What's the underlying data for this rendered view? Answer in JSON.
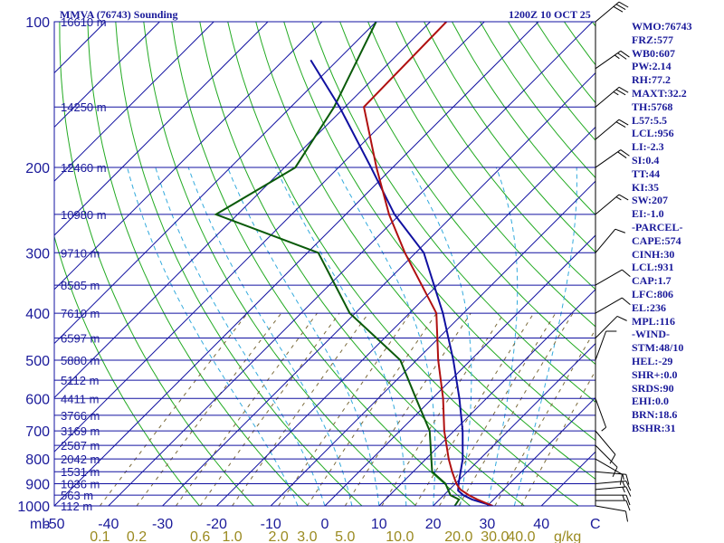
{
  "header": {
    "title_left": "MMVA (76743) Sounding",
    "title_right": "1200Z 10 OCT 25"
  },
  "colors": {
    "frame": "#1010a0",
    "isotherm": "#1010a0",
    "dry_adiabat": "#22aa22",
    "moist_adiabat": "#33aadd",
    "mixing_ratio": "#7a6a3a",
    "temperature": "#b01010",
    "dewpoint": "#0a5a0a",
    "parcel": "#1010a0",
    "wind": "#000000",
    "label": "#1a1a9a",
    "mixing_label": "#9a8a20"
  },
  "chart_data": {
    "type": "skew-t",
    "pressure_levels": [
      100,
      200,
      300,
      400,
      500,
      600,
      700,
      800,
      900,
      1000
    ],
    "pressure_labels": [
      "100",
      "200",
      "300",
      "400",
      "500",
      "600",
      "700",
      "800",
      "900",
      "1000"
    ],
    "height_labels": [
      {
        "p": 100,
        "text": "16610 m"
      },
      {
        "p": 150,
        "text": "14250 m"
      },
      {
        "p": 200,
        "text": "12460 m"
      },
      {
        "p": 250,
        "text": "10980 m"
      },
      {
        "p": 300,
        "text": "9710 m"
      },
      {
        "p": 350,
        "text": "8585 m"
      },
      {
        "p": 400,
        "text": "7610 m"
      },
      {
        "p": 450,
        "text": "6597 m"
      },
      {
        "p": 500,
        "text": "5880 m"
      },
      {
        "p": 550,
        "text": "5112 m"
      },
      {
        "p": 600,
        "text": "4411 m"
      },
      {
        "p": 650,
        "text": "3766 m"
      },
      {
        "p": 700,
        "text": "3169 m"
      },
      {
        "p": 750,
        "text": "2587 m"
      },
      {
        "p": 800,
        "text": "2042 m"
      },
      {
        "p": 850,
        "text": "1531 m"
      },
      {
        "p": 900,
        "text": "1036 m"
      },
      {
        "p": 950,
        "text": "563 m"
      },
      {
        "p": 1000,
        "text": "112 m"
      }
    ],
    "pressure_unit_label": "mb",
    "temperature_ticks": [
      -50,
      -40,
      -30,
      -20,
      -10,
      0,
      10,
      20,
      30,
      40
    ],
    "temperature_tick_labels": [
      "-50",
      "-40",
      "-30",
      "-20",
      "-10",
      "0",
      "10",
      "20",
      "30",
      "40"
    ],
    "temperature_unit_label": "C",
    "isotherms": [
      -150,
      -140,
      -130,
      -120,
      -110,
      -100,
      -90,
      -80,
      -70,
      -60,
      -50,
      -40,
      -30,
      -20,
      -10,
      0,
      10,
      20,
      30,
      40
    ],
    "dry_adiabats_theta_K": [
      250,
      260,
      270,
      280,
      290,
      300,
      310,
      320,
      330,
      340,
      350,
      360,
      370,
      380,
      390,
      400,
      410,
      420,
      430,
      440,
      450,
      460,
      470
    ],
    "moist_adiabats_C": [
      -5,
      0,
      5,
      10,
      15,
      20,
      25,
      30,
      35
    ],
    "mixing_ratios_gkg": [
      0.1,
      0.2,
      0.4,
      0.6,
      1.0,
      2.0,
      3.0,
      5.0,
      8.0,
      12.0,
      16.0,
      20.0,
      30.0,
      40.0
    ],
    "mixing_ratio_labels": [
      {
        "w": 0.1,
        "text": "0.1"
      },
      {
        "w": 0.2,
        "text": "0.2"
      },
      {
        "w": 0.6,
        "text": "0.6"
      },
      {
        "w": 1.0,
        "text": "1.0"
      },
      {
        "w": 2.0,
        "text": "2.0"
      },
      {
        "w": 3.0,
        "text": "3.0"
      },
      {
        "w": 5.0,
        "text": "5.0"
      },
      {
        "w": 10.0,
        "text": "10.0"
      },
      {
        "w": 20.0,
        "text": "20.0"
      },
      {
        "w": 30.0,
        "text": "30.0"
      },
      {
        "w": 40.0,
        "text": "40.0"
      }
    ],
    "mixing_ratio_unit_label": "g/kg",
    "axes": {
      "p_range": [
        1000,
        100
      ],
      "t_range_at_1000mb": [
        -50,
        50
      ],
      "p_scale": "log"
    },
    "temperature_profile": [
      {
        "p": 1000,
        "t": 31.0
      },
      {
        "p": 970,
        "t": 27.0
      },
      {
        "p": 950,
        "t": 24.6
      },
      {
        "p": 925,
        "t": 22.0
      },
      {
        "p": 900,
        "t": 20.2
      },
      {
        "p": 850,
        "t": 17.2
      },
      {
        "p": 800,
        "t": 14.2
      },
      {
        "p": 700,
        "t": 8.2
      },
      {
        "p": 600,
        "t": 2.0
      },
      {
        "p": 500,
        "t": -6.0
      },
      {
        "p": 400,
        "t": -15.0
      },
      {
        "p": 300,
        "t": -32.0
      },
      {
        "p": 250,
        "t": -42.0
      },
      {
        "p": 200,
        "t": -53.0
      },
      {
        "p": 150,
        "t": -66.5
      },
      {
        "p": 100,
        "t": -67.0
      }
    ],
    "dewpoint_profile": [
      {
        "p": 1000,
        "t": 24.0
      },
      {
        "p": 970,
        "t": 23.6
      },
      {
        "p": 950,
        "t": 21.2
      },
      {
        "p": 900,
        "t": 18.2
      },
      {
        "p": 850,
        "t": 13.5
      },
      {
        "p": 800,
        "t": 11.0
      },
      {
        "p": 700,
        "t": 5.5
      },
      {
        "p": 600,
        "t": -3.0
      },
      {
        "p": 500,
        "t": -13.0
      },
      {
        "p": 400,
        "t": -31.0
      },
      {
        "p": 300,
        "t": -48.0
      },
      {
        "p": 250,
        "t": -74.0
      },
      {
        "p": 200,
        "t": -68.0
      },
      {
        "p": 150,
        "t": -72.0
      },
      {
        "p": 100,
        "t": -80.0
      }
    ],
    "parcel_profile": [
      {
        "p": 1000,
        "t": 31.0
      },
      {
        "p": 970,
        "t": 26.0
      },
      {
        "p": 950,
        "t": 23.6
      },
      {
        "p": 930,
        "t": 21.8
      },
      {
        "p": 900,
        "t": 20.6
      },
      {
        "p": 800,
        "t": 16.8
      },
      {
        "p": 700,
        "t": 11.6
      },
      {
        "p": 600,
        "t": 5.0
      },
      {
        "p": 500,
        "t": -3.2
      },
      {
        "p": 400,
        "t": -13.8
      },
      {
        "p": 300,
        "t": -28.5
      },
      {
        "p": 250,
        "t": -41.0
      },
      {
        "p": 200,
        "t": -54.0
      },
      {
        "p": 150,
        "t": -71.0
      },
      {
        "p": 120,
        "t": -85.0
      }
    ],
    "wind_barbs": [
      {
        "p": 1000,
        "dir": 100,
        "spd": 10
      },
      {
        "p": 975,
        "dir": 90,
        "spd": 10
      },
      {
        "p": 950,
        "dir": 90,
        "spd": 15
      },
      {
        "p": 925,
        "dir": 85,
        "spd": 15
      },
      {
        "p": 900,
        "dir": 85,
        "spd": 15
      },
      {
        "p": 850,
        "dir": 95,
        "spd": 15
      },
      {
        "p": 800,
        "dir": 120,
        "spd": 10
      },
      {
        "p": 750,
        "dir": 135,
        "spd": 10
      },
      {
        "p": 700,
        "dir": 140,
        "spd": 10
      },
      {
        "p": 600,
        "dir": 160,
        "spd": 5
      },
      {
        "p": 500,
        "dir": 20,
        "spd": 10
      },
      {
        "p": 450,
        "dir": 45,
        "spd": 10
      },
      {
        "p": 400,
        "dir": 60,
        "spd": 10
      },
      {
        "p": 350,
        "dir": 60,
        "spd": 10
      },
      {
        "p": 300,
        "dir": 40,
        "spd": 10
      },
      {
        "p": 250,
        "dir": 50,
        "spd": 15
      },
      {
        "p": 200,
        "dir": 55,
        "spd": 20
      },
      {
        "p": 175,
        "dir": 50,
        "spd": 20
      },
      {
        "p": 150,
        "dir": 50,
        "spd": 25
      },
      {
        "p": 125,
        "dir": 55,
        "spd": 25
      },
      {
        "p": 100,
        "dir": 50,
        "spd": 30
      }
    ]
  },
  "indices": [
    "WMO:76743",
    "FRZ:577",
    "WB0:607",
    "PW:2.14",
    "RH:77.2",
    "MAXT:32.2",
    "TH:5768",
    "L57:5.5",
    "LCL:956",
    "LI:-2.3",
    "SI:0.4",
    "TT:44",
    "KI:35",
    "SW:207",
    "EI:-1.0",
    "-PARCEL-",
    "CAPE:574",
    "CINH:30",
    "LCL:931",
    "CAP:1.7",
    "LFC:806",
    "EL:236",
    "MPL:116",
    "-WIND-",
    "STM:48/10",
    "HEL:-29",
    "SHR+:0.0",
    "SRDS:90",
    "EHI:0.0",
    "BRN:18.6",
    "BSHR:31"
  ]
}
